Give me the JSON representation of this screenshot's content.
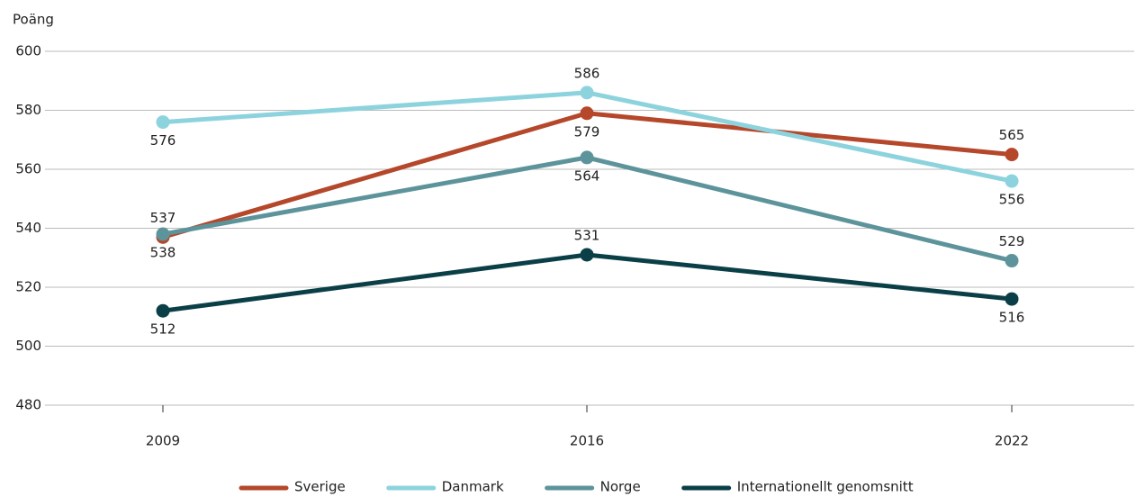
{
  "chart_data": {
    "type": "line",
    "y_label": "Poäng",
    "categories": [
      "2009",
      "2016",
      "2022"
    ],
    "series": [
      {
        "name": "Sverige",
        "color": "#b5472a",
        "values": [
          537,
          579,
          565
        ]
      },
      {
        "name": "Danmark",
        "color": "#8dd3dd",
        "values": [
          576,
          586,
          556
        ]
      },
      {
        "name": "Norge",
        "color": "#5d949b",
        "values": [
          538,
          564,
          529
        ]
      },
      {
        "name": "Internationellt genomsnitt",
        "color": "#0b3f47",
        "values": [
          512,
          531,
          516
        ]
      }
    ],
    "ylim": [
      480,
      600
    ],
    "yticks": [
      480,
      500,
      520,
      540,
      560,
      580,
      600
    ],
    "grid": true,
    "legend": "bottom"
  }
}
